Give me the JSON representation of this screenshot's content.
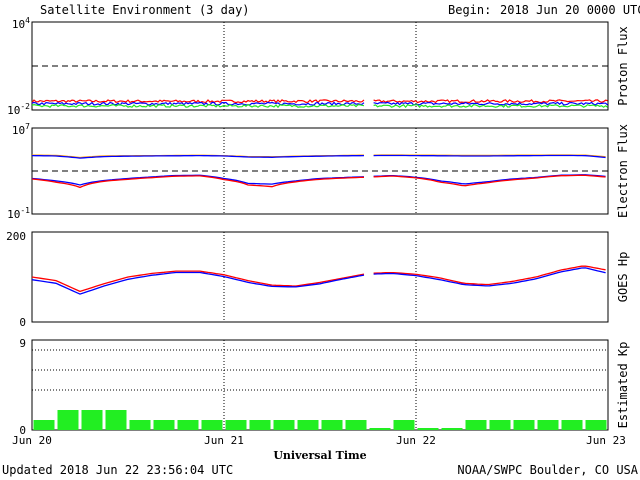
{
  "header": {
    "title": "Satellite Environment (3 day)",
    "begin_label": "Begin:",
    "begin_value": "2018 Jun 20 0000 UTC"
  },
  "footer": {
    "updated": "Updated 2018 Jun 22 23:56:04 UTC",
    "credit": "NOAA/SWPC Boulder, CO USA"
  },
  "x_axis": {
    "label": "Universal Time",
    "ticks": [
      "Jun 20",
      "Jun 21",
      "Jun 22",
      "Jun 23"
    ],
    "range_hours": [
      0,
      72
    ],
    "day_lines_hours": [
      24,
      48
    ],
    "data_gap_hours": [
      41.7,
      42.7
    ]
  },
  "colors": {
    "red": "#ff0000",
    "blue": "#0000ff",
    "green": "#22e622",
    "orange": "#ff9900",
    "kp_bar": "#22ee22"
  },
  "chart_data": [
    {
      "type": "line",
      "panel": "proton",
      "ylabel": "Proton Flux",
      "yscale": "log",
      "ylim": [
        0.01,
        10000
      ],
      "ytick_labels": {
        "top": {
          "base": "10",
          "exp": "4"
        },
        "bottom": {
          "base": "10",
          "exp": "-2"
        }
      },
      "threshold": 10,
      "x_hours": [
        0,
        6,
        12,
        18,
        24,
        30,
        36,
        42,
        48,
        54,
        60,
        66,
        72
      ],
      "series": [
        {
          "color": "red",
          "values": [
            0.04,
            0.04,
            0.04,
            0.039,
            0.039,
            0.04,
            0.04,
            0.04,
            0.039,
            0.04,
            0.04,
            0.04,
            0.04
          ]
        },
        {
          "color": "blue",
          "values": [
            0.027,
            0.027,
            0.027,
            0.027,
            0.027,
            0.027,
            0.027,
            0.027,
            0.027,
            0.027,
            0.027,
            0.027,
            0.027
          ]
        },
        {
          "color": "green",
          "values": [
            0.019,
            0.019,
            0.019,
            0.019,
            0.019,
            0.019,
            0.019,
            0.019,
            0.019,
            0.019,
            0.019,
            0.019,
            0.019
          ]
        }
      ]
    },
    {
      "type": "line",
      "panel": "electron",
      "ylabel": "Electron Flux",
      "yscale": "log",
      "ylim": [
        0.1,
        10000000
      ],
      "ytick_labels": {
        "top": {
          "base": "10",
          "exp": "7"
        },
        "bottom": {
          "base": "10",
          "exp": "-1"
        }
      },
      "threshold": 1000,
      "x_hours": [
        0,
        3,
        6,
        9,
        12,
        15,
        18,
        21,
        24,
        27,
        30,
        33,
        36,
        39,
        42,
        45,
        48,
        51,
        54,
        57,
        60,
        63,
        66,
        69,
        72
      ],
      "series": [
        {
          "color": "orange",
          "values": [
            30000,
            28000,
            18000,
            25000,
            26000,
            27000,
            28000,
            29000,
            27000,
            22000,
            21000,
            24000,
            26000,
            28000,
            30000,
            31000,
            30000,
            29000,
            28000,
            28000,
            29000,
            30000,
            31000,
            30000,
            20000
          ]
        },
        {
          "color": "blue",
          "values": [
            27000,
            25000,
            16000,
            22000,
            24000,
            25000,
            26000,
            27000,
            25000,
            20000,
            19000,
            22000,
            24000,
            26000,
            27000,
            28000,
            27000,
            26000,
            25000,
            25000,
            26000,
            27000,
            28000,
            27000,
            17000
          ]
        },
        {
          "color": "blue",
          "values": [
            200,
            120,
            50,
            130,
            200,
            280,
            380,
            400,
            200,
            70,
            60,
            120,
            200,
            250,
            300,
            380,
            260,
            120,
            60,
            100,
            180,
            250,
            400,
            450,
            300
          ]
        },
        {
          "color": "red",
          "values": [
            180,
            90,
            30,
            110,
            170,
            240,
            330,
            350,
            160,
            50,
            35,
            100,
            170,
            220,
            270,
            340,
            230,
            90,
            40,
            80,
            150,
            220,
            360,
            400,
            260
          ]
        }
      ]
    },
    {
      "type": "line",
      "panel": "hp",
      "ylabel": "GOES Hp",
      "yscale": "linear",
      "ylim": [
        0,
        200
      ],
      "ytick_labels": {
        "top": "200",
        "bottom": "0"
      },
      "x_hours": [
        0,
        3,
        6,
        9,
        12,
        15,
        18,
        21,
        24,
        27,
        30,
        33,
        36,
        39,
        42,
        45,
        48,
        51,
        54,
        57,
        60,
        63,
        66,
        69,
        72
      ],
      "series": [
        {
          "color": "red",
          "values": [
            100,
            92,
            68,
            85,
            100,
            108,
            113,
            113,
            105,
            92,
            82,
            80,
            88,
            98,
            108,
            110,
            106,
            98,
            86,
            83,
            90,
            100,
            115,
            125,
            115
          ]
        },
        {
          "color": "blue",
          "values": [
            94,
            86,
            62,
            80,
            95,
            104,
            110,
            110,
            101,
            88,
            79,
            78,
            85,
            96,
            106,
            108,
            103,
            94,
            83,
            80,
            86,
            96,
            111,
            121,
            108
          ]
        }
      ]
    },
    {
      "type": "bar",
      "panel": "kp",
      "ylabel": "Estimated Kp",
      "ylim": [
        0,
        9
      ],
      "ytick_labels": {
        "top": "9",
        "bottom": "0"
      },
      "grid_levels": [
        4,
        6,
        8
      ],
      "bar_hours": 3,
      "values": [
        1,
        2,
        2,
        2,
        1,
        1,
        1,
        1,
        1,
        1,
        1,
        1,
        1,
        1,
        0.2,
        1,
        0.2,
        0.2,
        1,
        1,
        1,
        1,
        1,
        1
      ]
    }
  ]
}
